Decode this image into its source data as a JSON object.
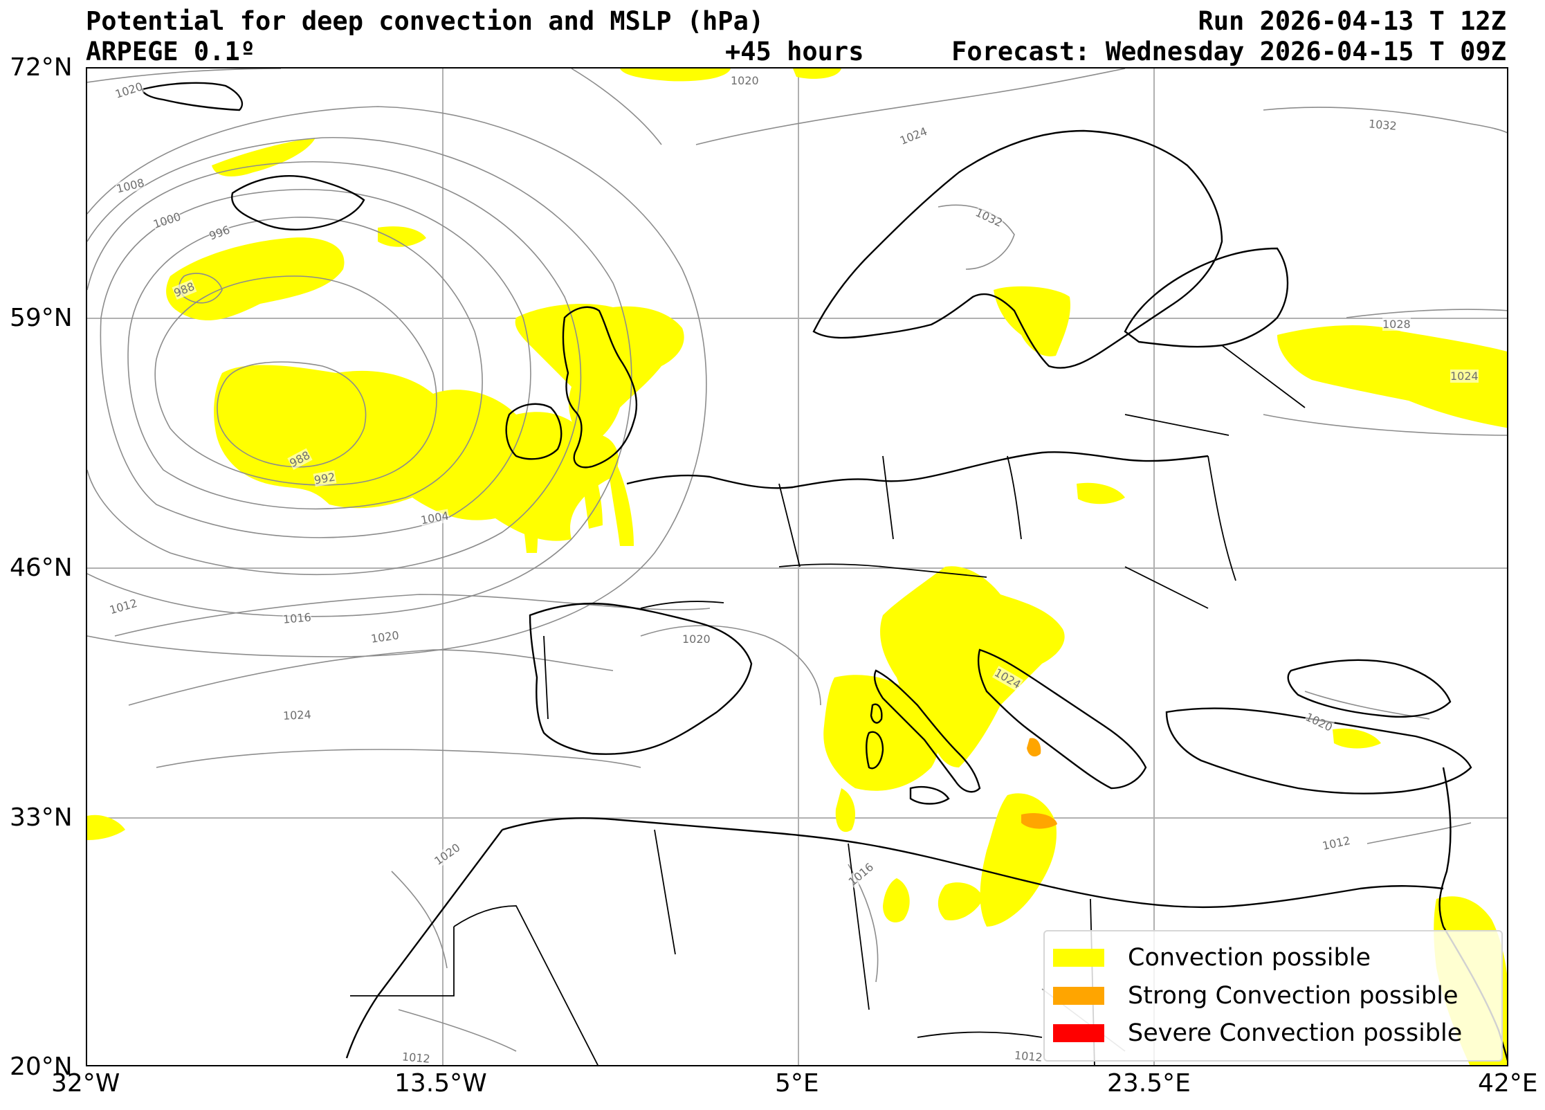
{
  "header": {
    "title": "Potential for deep convection and MSLP (hPa)",
    "model": "ARPEGE 0.1º",
    "run": "Run 2026-04-13 T 12Z",
    "lead_time": "+45 hours",
    "forecast": "Forecast: Wednesday 2026-04-15 T 09Z"
  },
  "axes": {
    "lon_ticks": [
      "32°W",
      "13.5°W",
      "5°E",
      "23.5°E",
      "42°E"
    ],
    "lat_ticks": [
      "72°N",
      "59°N",
      "46°N",
      "33°N",
      "20°N"
    ],
    "extent": {
      "lon_min": -32,
      "lon_max": 42,
      "lat_min": 20,
      "lat_max": 72
    },
    "grid": true
  },
  "legend": {
    "items": [
      {
        "label": "Convection possible",
        "color": "#ffff00"
      },
      {
        "label": "Strong Convection possible",
        "color": "#ffa500"
      },
      {
        "label": "Severe Convection possible",
        "color": "#ff0000"
      }
    ]
  },
  "isobar_labels": [
    "1020",
    "1020",
    "1024",
    "1032",
    "1008",
    "1000",
    "996",
    "988",
    "1032",
    "988",
    "992",
    "1004",
    "1012",
    "1016",
    "1020",
    "1020",
    "1024",
    "1024",
    "1028",
    "1024",
    "1020",
    "1012",
    "1016",
    "1020",
    "1012",
    "1012"
  ],
  "colors": {
    "coast": "#000000",
    "isobar": "#808080",
    "grid": "#b0b0b0",
    "convection": "#ffff00",
    "strong": "#ffa500",
    "severe": "#ff0000"
  }
}
